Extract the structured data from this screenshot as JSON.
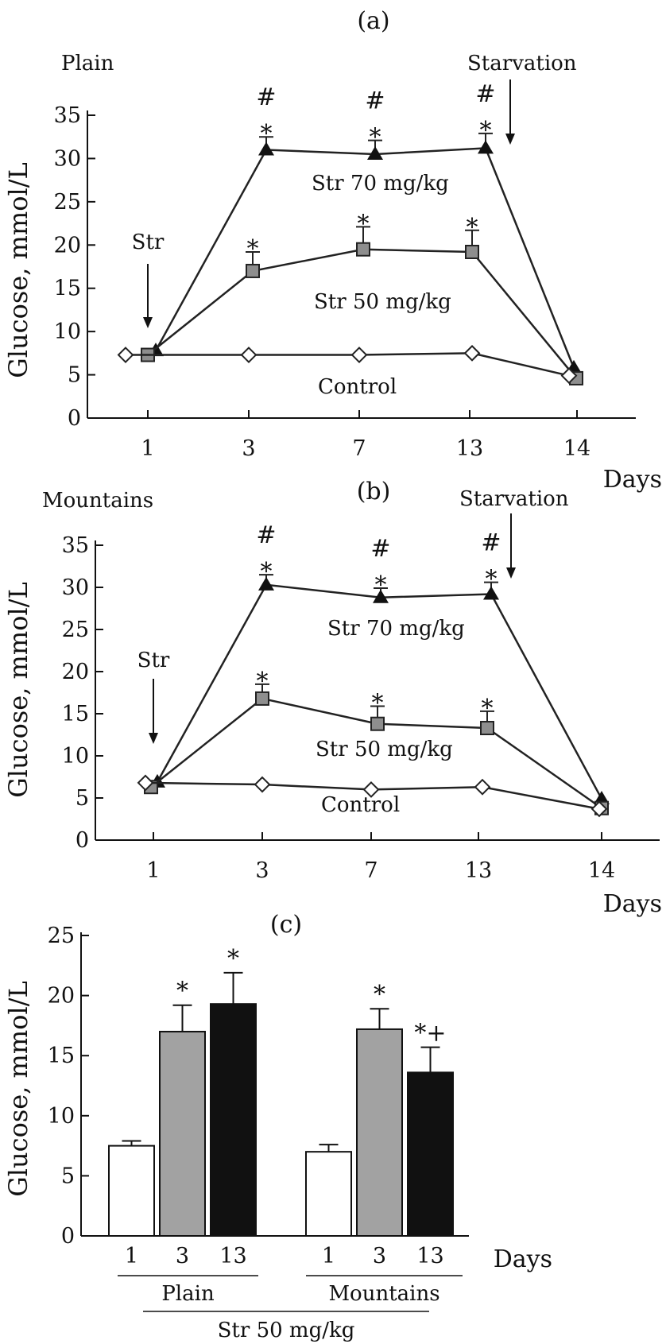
{
  "chart_data": [
    {
      "type": "line",
      "panel_label": "(a)",
      "corner_label": "Plain",
      "ylabel": "Glucose, mmol/L",
      "xlabel": "Days",
      "categories": [
        "1",
        "3",
        "7",
        "13",
        "14"
      ],
      "yticks": [
        "0",
        "5",
        "10",
        "15",
        "20",
        "25",
        "30",
        "35"
      ],
      "ylim": [
        0,
        35
      ],
      "grid": false,
      "series": [
        {
          "name": "Str 70 mg/kg",
          "marker": "triangle",
          "values": [
            7.8,
            31.0,
            30.5,
            31.2,
            5.8
          ],
          "err": [
            null,
            1.5,
            1.6,
            1.7,
            null
          ],
          "sig": [
            "",
            "#\n*",
            "#\n*",
            "#\n*",
            ""
          ]
        },
        {
          "name": "Str 50 mg/kg",
          "marker": "square",
          "values": [
            7.3,
            17.0,
            19.5,
            19.2,
            4.6
          ],
          "err": [
            null,
            2.2,
            2.6,
            2.5,
            null
          ],
          "sig": [
            "",
            "*",
            "*",
            "*",
            ""
          ]
        },
        {
          "name": "Control",
          "marker": "diamond",
          "values": [
            7.3,
            7.3,
            7.3,
            7.5,
            4.9
          ],
          "err": [
            null,
            null,
            null,
            null,
            null
          ],
          "sig": [
            "",
            "",
            "",
            "",
            ""
          ]
        }
      ],
      "annotations": {
        "str": "Str",
        "starvation": "Starvation"
      }
    },
    {
      "type": "line",
      "panel_label": "(b)",
      "corner_label": "Mountains",
      "ylabel": "Glucose, mmol/L",
      "xlabel": "Days",
      "categories": [
        "1",
        "3",
        "7",
        "13",
        "14"
      ],
      "yticks": [
        "0",
        "5",
        "10",
        "15",
        "20",
        "25",
        "30",
        "35"
      ],
      "ylim": [
        0,
        35
      ],
      "grid": false,
      "series": [
        {
          "name": "Str 70 mg/kg",
          "marker": "triangle",
          "values": [
            6.9,
            30.3,
            28.8,
            29.2,
            4.9
          ],
          "err": [
            null,
            1.2,
            1.1,
            1.4,
            null
          ],
          "sig": [
            "",
            "#\n*",
            "#\n*",
            "#\n*",
            ""
          ]
        },
        {
          "name": "Str 50 mg/kg",
          "marker": "square",
          "values": [
            6.3,
            16.8,
            13.8,
            13.3,
            3.8
          ],
          "err": [
            null,
            1.7,
            2.1,
            2.0,
            null
          ],
          "sig": [
            "",
            "*",
            "*",
            "*",
            ""
          ]
        },
        {
          "name": "Control",
          "marker": "diamond",
          "values": [
            6.8,
            6.6,
            6.0,
            6.3,
            3.7
          ],
          "err": [
            null,
            null,
            null,
            null,
            null
          ],
          "sig": [
            "",
            "",
            "",
            "",
            ""
          ]
        }
      ],
      "annotations": {
        "str": "Str",
        "starvation": "Starvation"
      }
    },
    {
      "type": "bar",
      "panel_label": "(c)",
      "ylabel": "Glucose, mmol/L",
      "xlabel": "Days",
      "ylim": [
        0,
        25
      ],
      "yticks": [
        "0",
        "5",
        "10",
        "15",
        "20",
        "25"
      ],
      "groups": [
        {
          "name": "Plain",
          "bars": [
            {
              "day": "1",
              "value": 7.5,
              "err": 0.4,
              "sig": ""
            },
            {
              "day": "3",
              "value": 17.0,
              "err": 2.2,
              "sig": "*"
            },
            {
              "day": "13",
              "value": 19.3,
              "err": 2.6,
              "sig": "*"
            }
          ]
        },
        {
          "name": "Mountains",
          "bars": [
            {
              "day": "1",
              "value": 7.0,
              "err": 0.6,
              "sig": ""
            },
            {
              "day": "3",
              "value": 17.2,
              "err": 1.7,
              "sig": "*"
            },
            {
              "day": "13",
              "value": 13.6,
              "err": 2.1,
              "sig": "*+"
            }
          ]
        }
      ],
      "bar_colors": [
        "#ffffff",
        "#a2a2a2",
        "#111111"
      ],
      "footer": "Str 50 mg/kg"
    }
  ]
}
